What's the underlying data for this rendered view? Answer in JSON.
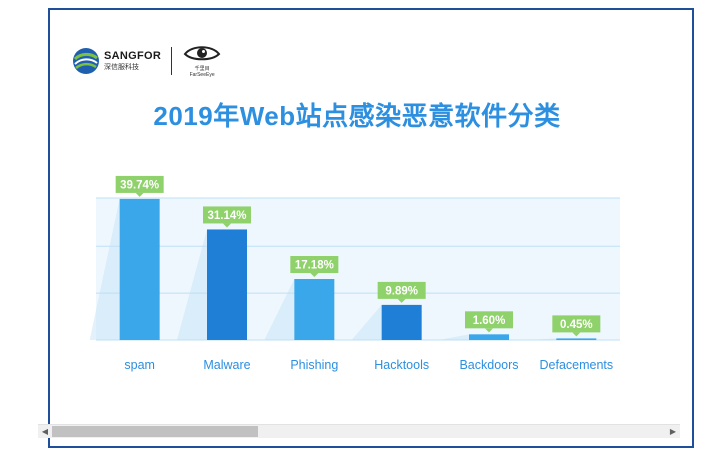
{
  "brand": {
    "name": "SANGFOR",
    "subname": "深信服科技",
    "partner_subname": "千里目",
    "partner_en": "FarSeeEye"
  },
  "colors": {
    "title": "#2c8fe0",
    "bar": "#3aa7ea",
    "bar_dark": "#1f7fd6",
    "label_bg": "#8fd16a",
    "category_text": "#2c8fe0",
    "gridline": "#bfe0f6",
    "plot_bg": "#eef7fd"
  },
  "chart_data": {
    "type": "bar",
    "title": "2019年Web站点感染恶意软件分类",
    "categories": [
      "spam",
      "Malware",
      "Phishing",
      "Hacktools",
      "Backdoors",
      "Defacements"
    ],
    "values": [
      39.74,
      31.14,
      17.18,
      9.89,
      1.6,
      0.45
    ],
    "value_labels": [
      "39.74%",
      "31.14%",
      "17.18%",
      "9.89%",
      "1.60%",
      "0.45%"
    ],
    "ylim": [
      0,
      40
    ],
    "grid": true,
    "legend": "none"
  }
}
